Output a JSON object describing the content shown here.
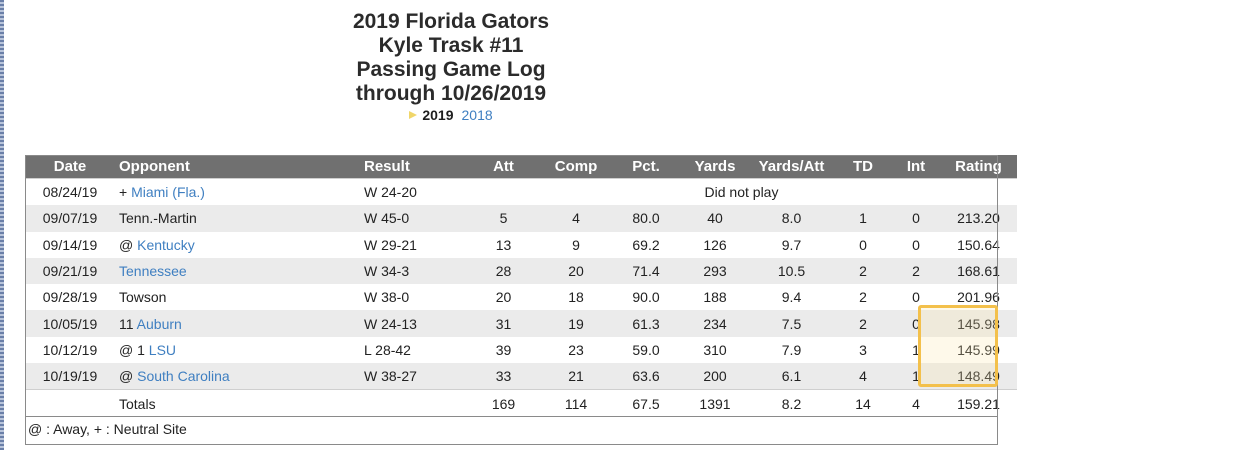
{
  "header": {
    "title_lines": [
      "2019 Florida Gators",
      "Kyle Trask #11",
      "Passing Game Log",
      "through 10/26/2019"
    ],
    "current_year": "2019",
    "other_year": "2018"
  },
  "table": {
    "columns": [
      "Date",
      "Opponent",
      "Result",
      "Att",
      "Comp",
      "Pct.",
      "Yards",
      "Yards/Att",
      "TD",
      "Int",
      "Rating"
    ],
    "rows": [
      {
        "date": "08/24/19",
        "prefix": "+",
        "rank": "",
        "opponent": "Miami (Fla.)",
        "opponent_link": true,
        "result": "W 24-20",
        "dnp_text": "Did not play"
      },
      {
        "date": "09/07/19",
        "prefix": "",
        "rank": "",
        "opponent": "Tenn.-Martin",
        "opponent_link": false,
        "result": "W 45-0",
        "att": "5",
        "comp": "4",
        "pct": "80.0",
        "yards": "40",
        "ypa": "8.0",
        "td": "1",
        "int": "0",
        "rating": "213.20"
      },
      {
        "date": "09/14/19",
        "prefix": "@",
        "rank": "",
        "opponent": "Kentucky",
        "opponent_link": true,
        "result": "W 29-21",
        "att": "13",
        "comp": "9",
        "pct": "69.2",
        "yards": "126",
        "ypa": "9.7",
        "td": "0",
        "int": "0",
        "rating": "150.64"
      },
      {
        "date": "09/21/19",
        "prefix": "",
        "rank": "",
        "opponent": "Tennessee",
        "opponent_link": true,
        "result": "W 34-3",
        "att": "28",
        "comp": "20",
        "pct": "71.4",
        "yards": "293",
        "ypa": "10.5",
        "td": "2",
        "int": "2",
        "rating": "168.61"
      },
      {
        "date": "09/28/19",
        "prefix": "",
        "rank": "",
        "opponent": "Towson",
        "opponent_link": false,
        "result": "W 38-0",
        "att": "20",
        "comp": "18",
        "pct": "90.0",
        "yards": "188",
        "ypa": "9.4",
        "td": "2",
        "int": "0",
        "rating": "201.96"
      },
      {
        "date": "10/05/19",
        "prefix": "",
        "rank": "11",
        "opponent": "Auburn",
        "opponent_link": true,
        "result": "W 24-13",
        "att": "31",
        "comp": "19",
        "pct": "61.3",
        "yards": "234",
        "ypa": "7.5",
        "td": "2",
        "int": "0",
        "rating": "145.98"
      },
      {
        "date": "10/12/19",
        "prefix": "@",
        "rank": "1",
        "opponent": "LSU",
        "opponent_link": true,
        "result": "L 28-42",
        "att": "39",
        "comp": "23",
        "pct": "59.0",
        "yards": "310",
        "ypa": "7.9",
        "td": "3",
        "int": "1",
        "rating": "145.99"
      },
      {
        "date": "10/19/19",
        "prefix": "@",
        "rank": "",
        "opponent": "South Carolina",
        "opponent_link": true,
        "result": "W 38-27",
        "att": "33",
        "comp": "21",
        "pct": "63.6",
        "yards": "200",
        "ypa": "6.1",
        "td": "4",
        "int": "1",
        "rating": "148.49"
      }
    ],
    "totals": {
      "label": "Totals",
      "att": "169",
      "comp": "114",
      "pct": "67.5",
      "yards": "1391",
      "ypa": "8.2",
      "td": "14",
      "int": "4",
      "rating": "159.21"
    }
  },
  "legend": "@ : Away, + : Neutral Site",
  "colors": {
    "header_bg": "#707070",
    "link": "#3f7fc1",
    "highlight_border": "#f3c04b"
  }
}
